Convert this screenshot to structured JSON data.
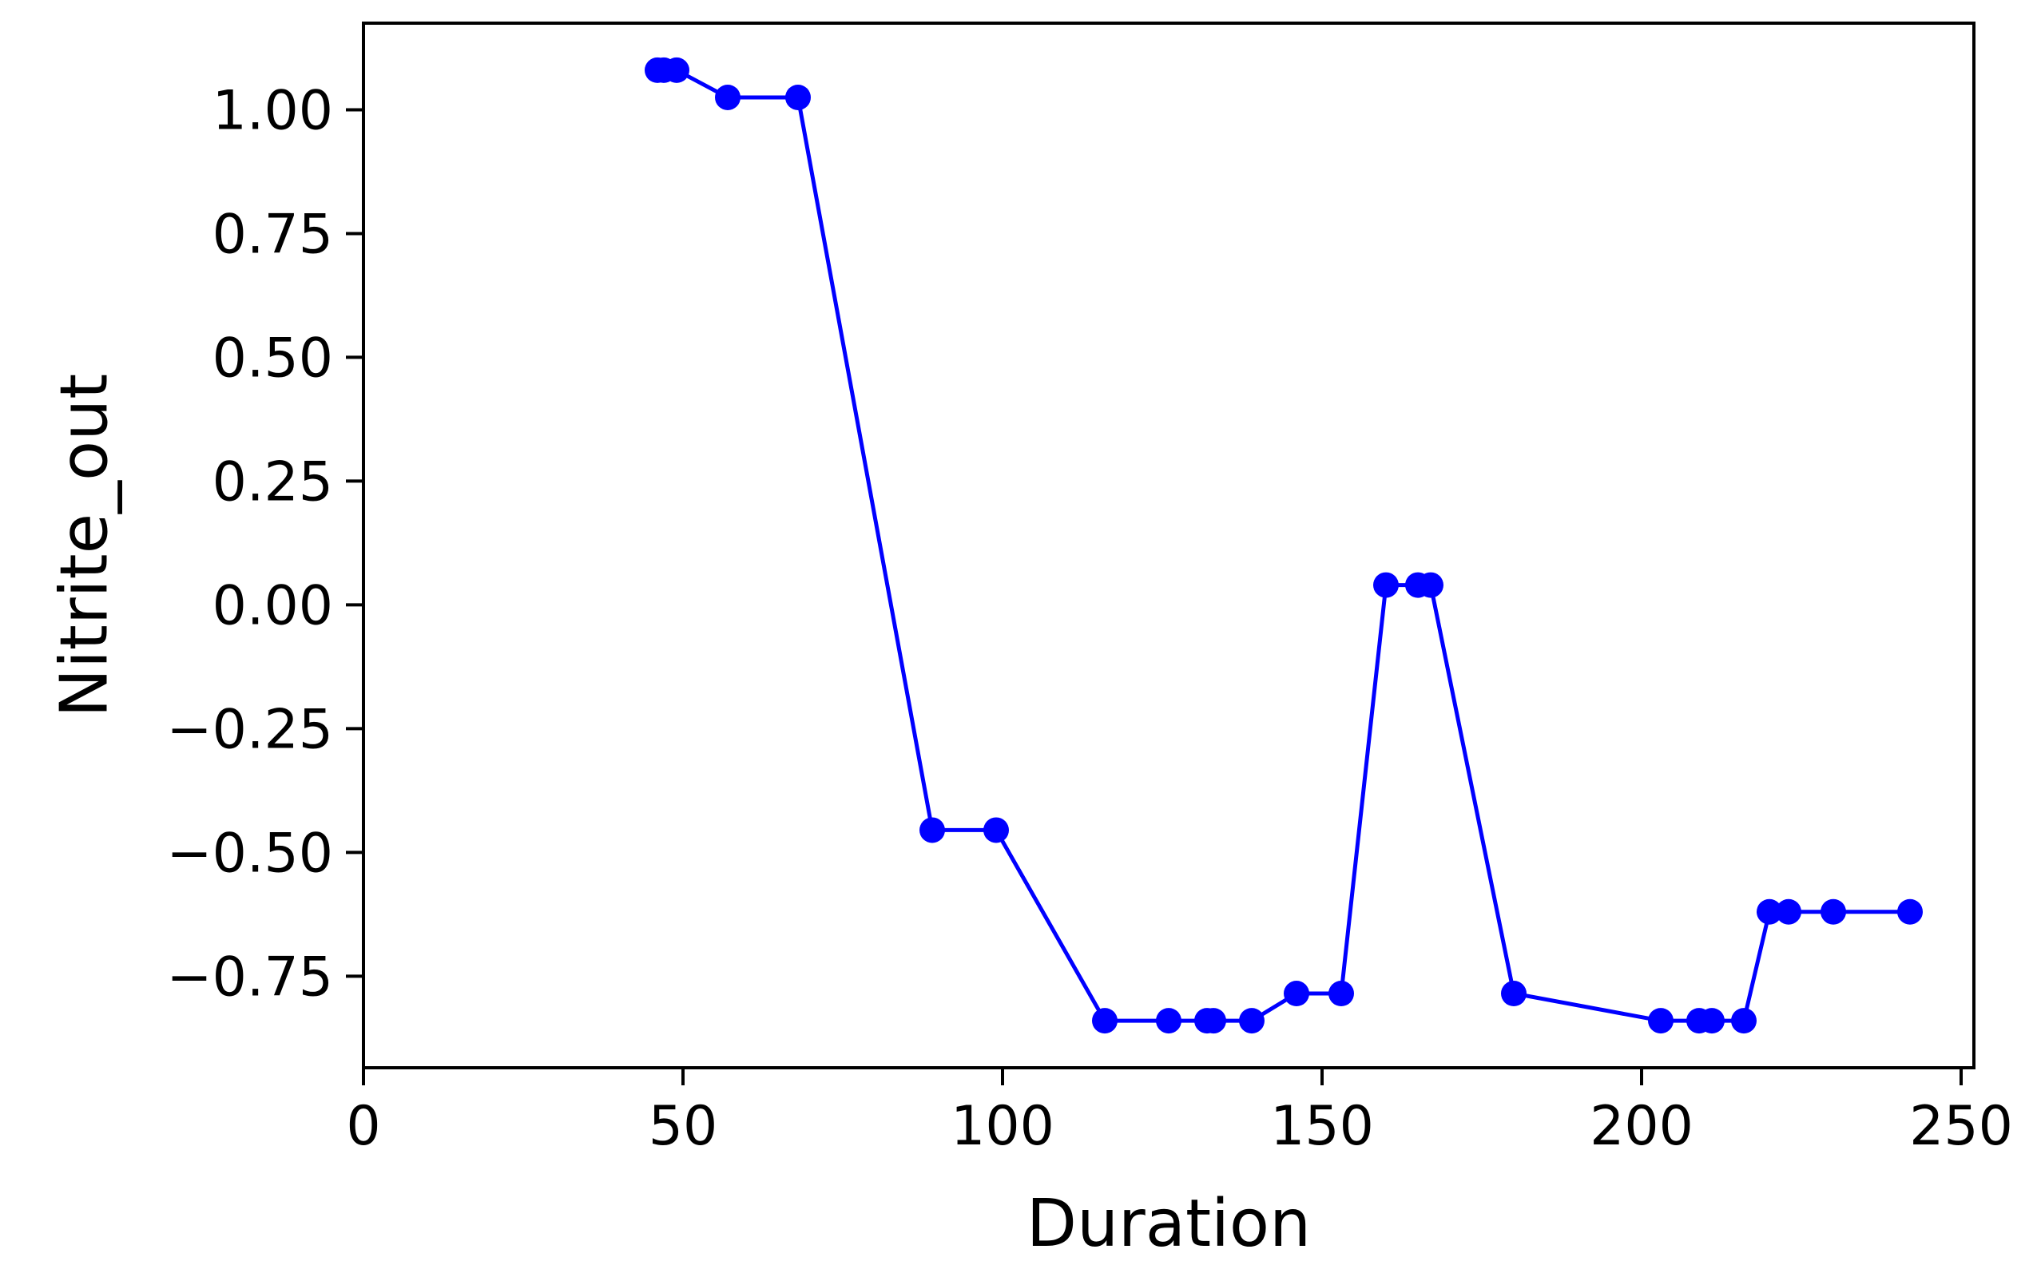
{
  "chart_data": {
    "type": "line",
    "title": "",
    "xlabel": "Duration",
    "ylabel": "Nitrite_out",
    "xlim": [
      0,
      252
    ],
    "ylim": [
      -0.935,
      1.175
    ],
    "x_ticks": [
      0,
      50,
      100,
      150,
      200,
      250
    ],
    "x_tick_labels": [
      "0",
      "50",
      "100",
      "150",
      "200",
      "250"
    ],
    "y_ticks": [
      1.0,
      0.75,
      0.5,
      0.25,
      0.0,
      -0.25,
      -0.5,
      -0.75
    ],
    "y_tick_labels": [
      "1.00",
      "0.75",
      "0.50",
      "0.25",
      "0.00",
      "−0.25",
      "−0.50",
      "−0.75"
    ],
    "grid": false,
    "legend": "none",
    "series": [
      {
        "color": "#0000ff",
        "marker": "circle",
        "x": [
          46,
          47,
          49,
          57,
          68,
          89,
          99,
          116,
          126,
          132,
          133,
          139,
          146,
          153,
          160,
          165,
          167,
          180,
          203,
          209,
          211,
          216,
          220,
          223,
          230,
          242
        ],
        "y": [
          1.08,
          1.08,
          1.08,
          1.025,
          1.025,
          -0.455,
          -0.455,
          -0.84,
          -0.84,
          -0.84,
          -0.84,
          -0.84,
          -0.785,
          -0.785,
          0.04,
          0.04,
          0.04,
          -0.785,
          -0.84,
          -0.84,
          -0.84,
          -0.84,
          -0.62,
          -0.62,
          -0.62,
          -0.62
        ]
      }
    ]
  }
}
